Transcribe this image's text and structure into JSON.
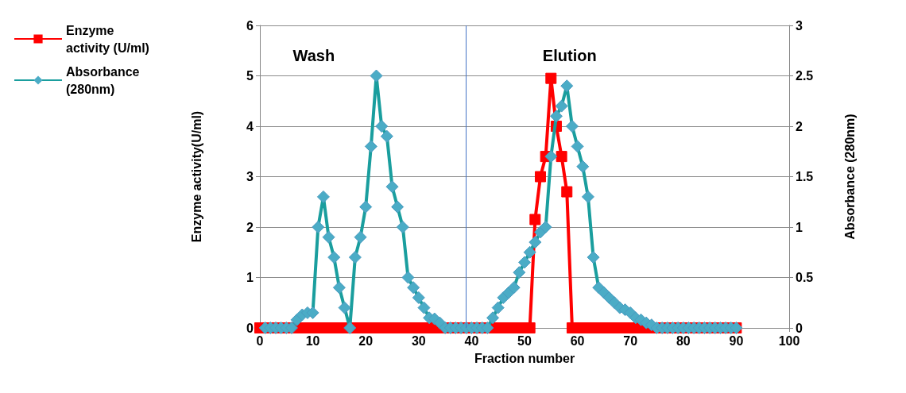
{
  "chart_data": {
    "type": "line",
    "xlabel": "Fraction number",
    "ylabel": "Enzyme activity(U/ml)",
    "y2label": "Absorbance (280nm)",
    "xlim": [
      0,
      100
    ],
    "xticks": [
      0,
      10,
      20,
      30,
      40,
      50,
      60,
      70,
      80,
      90,
      100
    ],
    "ylim": [
      0,
      6
    ],
    "yticks": [
      0,
      1,
      2,
      3,
      4,
      5,
      6
    ],
    "y2lim": [
      0,
      3
    ],
    "y2ticks": [
      0,
      0.5,
      1,
      1.5,
      2,
      2.5,
      3
    ],
    "grid": "y",
    "legend": "top left",
    "annotations": [
      "Wash",
      "Elution"
    ],
    "ref_lines": [
      {
        "axis": "x",
        "value": 39,
        "label": null,
        "color": "#4472c4"
      }
    ],
    "series": [
      {
        "name": "Enzyme activity (U/ml)",
        "color": "#ff0000",
        "marker": "square",
        "x": [
          0,
          1,
          2,
          3,
          4,
          5,
          6,
          7,
          8,
          9,
          10,
          11,
          12,
          13,
          14,
          15,
          16,
          17,
          18,
          19,
          20,
          21,
          22,
          23,
          24,
          25,
          26,
          27,
          28,
          29,
          30,
          31,
          32,
          33,
          34,
          35,
          36,
          37,
          38,
          39,
          40,
          41,
          42,
          43,
          44,
          45,
          46,
          47,
          48,
          49,
          50,
          51,
          52,
          53,
          54,
          55,
          56,
          57,
          58,
          59,
          60,
          61,
          62,
          63,
          64,
          65,
          66,
          67,
          68,
          69,
          70,
          71,
          72,
          73,
          74,
          75,
          76,
          77,
          78,
          79,
          80,
          81,
          82,
          83,
          84,
          85,
          86,
          87,
          88,
          89,
          90
        ],
        "values": [
          0,
          0,
          0,
          0,
          0,
          0,
          0,
          0,
          0,
          0,
          0,
          0,
          0,
          0,
          0,
          0,
          0,
          0,
          0,
          0,
          0,
          0,
          0,
          0,
          0,
          0,
          0,
          0,
          0,
          0,
          0,
          0,
          0,
          0,
          0,
          0,
          0,
          0,
          0,
          0,
          0,
          0,
          0,
          0,
          0,
          0,
          0,
          0,
          0,
          0,
          0,
          0,
          2.15,
          3.0,
          3.4,
          4.95,
          4.0,
          3.4,
          2.7,
          0,
          0,
          0,
          0,
          0,
          0,
          0,
          0,
          0,
          0,
          0,
          0,
          0,
          0,
          0,
          0,
          0,
          0,
          0,
          0,
          0,
          0,
          0,
          0,
          0,
          0,
          0,
          0,
          0,
          0,
          0,
          0
        ]
      },
      {
        "name": "Absorbance (280nm)",
        "color": "#1a9e9e",
        "marker": "diamond",
        "axis": "y2",
        "x": [
          1,
          2,
          3,
          4,
          5,
          6,
          7,
          8,
          9,
          10,
          11,
          12,
          13,
          14,
          15,
          16,
          17,
          18,
          19,
          20,
          21,
          22,
          23,
          24,
          25,
          26,
          27,
          28,
          29,
          30,
          31,
          32,
          33,
          34,
          35,
          36,
          37,
          38,
          39,
          40,
          41,
          42,
          43,
          44,
          45,
          46,
          47,
          48,
          49,
          50,
          51,
          52,
          53,
          54,
          55,
          56,
          57,
          58,
          59,
          60,
          61,
          62,
          63,
          64,
          65,
          66,
          67,
          68,
          69,
          70,
          71,
          72,
          73,
          74,
          75,
          76,
          77,
          78,
          79,
          80,
          81,
          82,
          83,
          84,
          85,
          86,
          87,
          88,
          89,
          90
        ],
        "values": [
          0,
          0,
          0,
          0,
          0,
          0,
          0.08,
          0.13,
          0.15,
          0.15,
          1.0,
          1.3,
          0.9,
          0.7,
          0.4,
          0.2,
          0,
          0.7,
          0.9,
          1.2,
          1.8,
          2.5,
          2.0,
          1.9,
          1.4,
          1.2,
          1.0,
          0.5,
          0.4,
          0.3,
          0.2,
          0.1,
          0.09,
          0.05,
          0,
          0,
          0,
          0,
          0,
          0,
          0,
          0,
          0,
          0.1,
          0.2,
          0.3,
          0.35,
          0.4,
          0.55,
          0.65,
          0.75,
          0.85,
          0.95,
          1.0,
          1.7,
          2.1,
          2.2,
          2.4,
          2.0,
          1.8,
          1.6,
          1.3,
          0.7,
          0.4,
          0.35,
          0.3,
          0.25,
          0.2,
          0.18,
          0.15,
          0.1,
          0.08,
          0.05,
          0.03,
          0,
          0,
          0,
          0,
          0,
          0,
          0,
          0,
          0,
          0,
          0,
          0,
          0,
          0,
          0,
          0
        ]
      }
    ]
  }
}
